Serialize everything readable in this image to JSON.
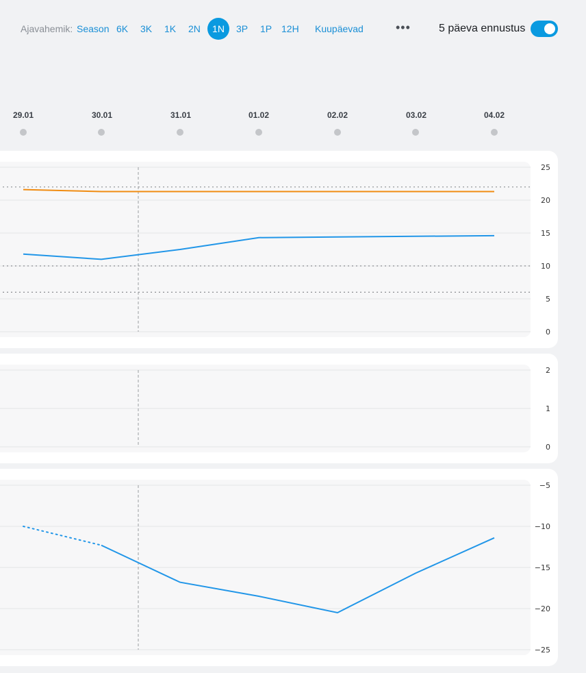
{
  "toolbar": {
    "label": "Ajavahemik:",
    "ranges": [
      "Season",
      "6K",
      "3K",
      "1K",
      "2N",
      "1N",
      "3P",
      "1P",
      "12H",
      "Kuupäevad"
    ],
    "active_range": "1N",
    "more": "•••",
    "forecast_label": "5 päeva ennustus",
    "forecast_toggle_on": true
  },
  "dates": [
    "29.01",
    "30.01",
    "31.01",
    "01.02",
    "02.02",
    "03.02",
    "04.02"
  ],
  "colors": {
    "accent": "#0a9ae0",
    "series_blue": "#2196e8",
    "series_orange": "#f08c12",
    "page_bg": "#f1f2f4"
  },
  "chart_data": [
    {
      "type": "line",
      "y_ticks": [
        "25",
        "20",
        "15",
        "10",
        "5",
        "0"
      ],
      "ylim": [
        0,
        25
      ],
      "x": [
        "29.01",
        "30.01",
        "31.01",
        "01.02",
        "02.02",
        "03.02",
        "04.02"
      ],
      "reference_lines": [
        22,
        10,
        6
      ],
      "series": [
        {
          "color": "#f08c12",
          "values": [
            21.6,
            21.3,
            21.3,
            21.3,
            21.3,
            21.3,
            21.3
          ]
        },
        {
          "color": "#2196e8",
          "values": [
            11.8,
            11.0,
            12.5,
            14.3,
            14.4,
            14.5,
            14.6
          ]
        }
      ],
      "grid": true
    },
    {
      "type": "line",
      "y_ticks": [
        "2",
        "1",
        "0"
      ],
      "ylim": [
        0,
        2
      ],
      "series": [],
      "grid": true
    },
    {
      "type": "line",
      "y_ticks": [
        "−5",
        "−10",
        "−15",
        "−20",
        "−25"
      ],
      "ylim": [
        -25,
        -5
      ],
      "x": [
        "29.01",
        "30.01",
        "31.01",
        "01.02",
        "02.02",
        "03.02",
        "04.02"
      ],
      "series": [
        {
          "color": "#2196e8",
          "values": [
            -10.0,
            -12.3,
            -16.8,
            -18.5,
            -20.5,
            -15.7,
            -11.4
          ]
        }
      ],
      "grid": true
    }
  ]
}
